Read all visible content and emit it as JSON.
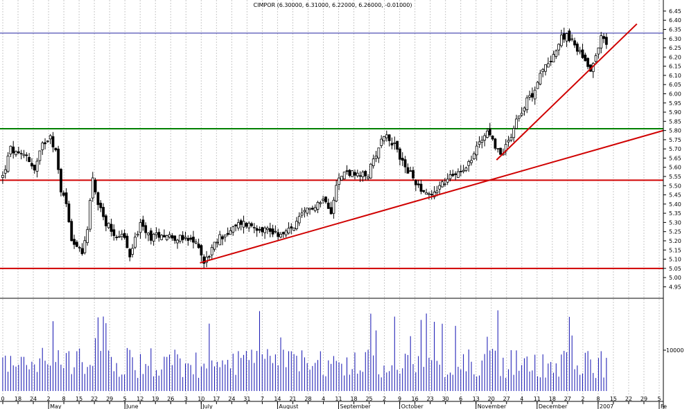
{
  "chart_data": {
    "type": "candlestick",
    "title": "CIMPOR (6.30000, 6.31000, 6.22000, 6.26000, -0.01000)",
    "price_axis": {
      "ylim": [
        4.91,
        6.48
      ],
      "ticks": [
        "4.95",
        "5.00",
        "5.05",
        "5.10",
        "5.15",
        "5.20",
        "5.25",
        "5.30",
        "5.35",
        "5.40",
        "5.45",
        "5.50",
        "5.55",
        "5.60",
        "5.65",
        "5.70",
        "5.75",
        "5.80",
        "5.85",
        "5.90",
        "5.95",
        "6.00",
        "6.05",
        "6.10",
        "6.15",
        "6.20",
        "6.25",
        "6.30",
        "6.35",
        "6.40",
        "6.45"
      ]
    },
    "volume_axis": {
      "ticks": [
        "10000"
      ]
    },
    "x_day_ticks": [
      "0",
      "18",
      "24",
      "2",
      "8",
      "15",
      "22",
      "29",
      "5",
      "12",
      "19",
      "26",
      "3",
      "10",
      "17",
      "24",
      "31",
      "7",
      "14",
      "21",
      "28",
      "4",
      "11",
      "18",
      "25",
      "2",
      "9",
      "16",
      "23",
      "30",
      "6",
      "13",
      "20",
      "27",
      "4",
      "11",
      "18",
      "27",
      "2",
      "8",
      "15",
      "22",
      "29",
      "5"
    ],
    "months": [
      "May",
      "June",
      "July",
      "August",
      "September",
      "October",
      "November",
      "December",
      "2007",
      "Fe"
    ],
    "horizontal_lines": [
      {
        "price": 6.33,
        "color": "#2020a0"
      },
      {
        "price": 5.81,
        "color": "#008000"
      },
      {
        "price": 5.53,
        "color": "#d00000"
      },
      {
        "price": 5.05,
        "color": "#d00000"
      }
    ],
    "trend_lines": [
      {
        "from": [
          75,
          5.08
        ],
        "to": [
          250,
          5.8
        ],
        "color": "#d00000"
      },
      {
        "from": [
          187,
          5.64
        ],
        "to": [
          240,
          6.38
        ],
        "color": "#d00000"
      }
    ],
    "price_anchors": [
      [
        0,
        5.55
      ],
      [
        3,
        5.7
      ],
      [
        6,
        5.66
      ],
      [
        9,
        5.67
      ],
      [
        12,
        5.58
      ],
      [
        15,
        5.72
      ],
      [
        18,
        5.78
      ],
      [
        20,
        5.68
      ],
      [
        22,
        5.48
      ],
      [
        24,
        5.4
      ],
      [
        26,
        5.22
      ],
      [
        28,
        5.17
      ],
      [
        30,
        5.12
      ],
      [
        32,
        5.28
      ],
      [
        34,
        5.55
      ],
      [
        36,
        5.4
      ],
      [
        38,
        5.32
      ],
      [
        42,
        5.24
      ],
      [
        46,
        5.22
      ],
      [
        48,
        5.1
      ],
      [
        50,
        5.22
      ],
      [
        52,
        5.28
      ],
      [
        56,
        5.22
      ],
      [
        60,
        5.24
      ],
      [
        65,
        5.22
      ],
      [
        70,
        5.2
      ],
      [
        74,
        5.18
      ],
      [
        76,
        5.08
      ],
      [
        78,
        5.13
      ],
      [
        82,
        5.22
      ],
      [
        86,
        5.25
      ],
      [
        90,
        5.3
      ],
      [
        95,
        5.28
      ],
      [
        100,
        5.26
      ],
      [
        106,
        5.23
      ],
      [
        110,
        5.28
      ],
      [
        114,
        5.35
      ],
      [
        118,
        5.4
      ],
      [
        122,
        5.43
      ],
      [
        124,
        5.36
      ],
      [
        126,
        5.52
      ],
      [
        130,
        5.58
      ],
      [
        134,
        5.55
      ],
      [
        138,
        5.56
      ],
      [
        141,
        5.68
      ],
      [
        144,
        5.78
      ],
      [
        147,
        5.74
      ],
      [
        150,
        5.66
      ],
      [
        153,
        5.58
      ],
      [
        156,
        5.52
      ],
      [
        159,
        5.47
      ],
      [
        162,
        5.45
      ],
      [
        165,
        5.5
      ],
      [
        168,
        5.53
      ],
      [
        171,
        5.57
      ],
      [
        174,
        5.6
      ],
      [
        177,
        5.64
      ],
      [
        180,
        5.74
      ],
      [
        183,
        5.8
      ],
      [
        186,
        5.72
      ],
      [
        188,
        5.66
      ],
      [
        190,
        5.72
      ],
      [
        192,
        5.78
      ],
      [
        194,
        5.86
      ],
      [
        197,
        5.94
      ],
      [
        200,
        6.0
      ],
      [
        203,
        6.1
      ],
      [
        206,
        6.17
      ],
      [
        209,
        6.24
      ],
      [
        211,
        6.3
      ],
      [
        213,
        6.33
      ],
      [
        215,
        6.28
      ],
      [
        218,
        6.23
      ],
      [
        220,
        6.18
      ],
      [
        222,
        6.14
      ],
      [
        224,
        6.2
      ],
      [
        226,
        6.32
      ],
      [
        228,
        6.26
      ]
    ],
    "n_bars": 229,
    "x_domain": [
      0,
      250
    ]
  }
}
